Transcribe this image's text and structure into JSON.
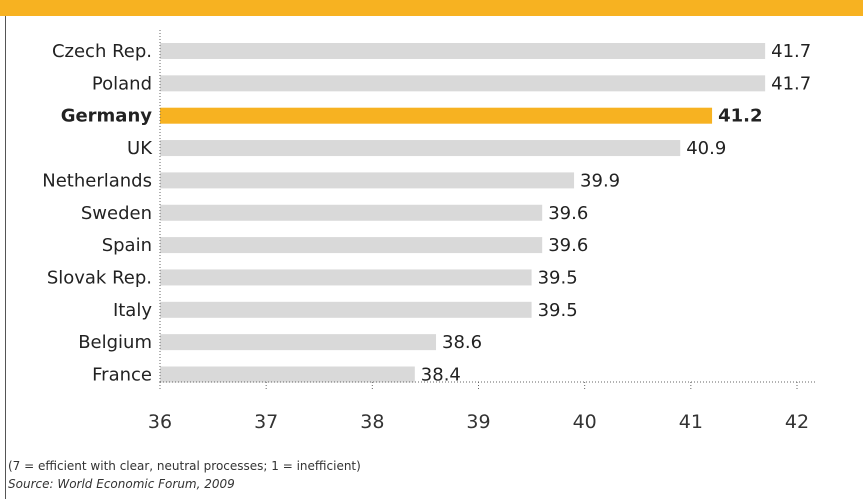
{
  "colors": {
    "bar": "#d9d9d9",
    "highlight": "#f7b221",
    "band": "#f7b221"
  },
  "chart_data": {
    "type": "bar",
    "orientation": "horizontal",
    "categories": [
      "Czech Rep.",
      "Poland",
      "Germany",
      "UK",
      "Netherlands",
      "Sweden",
      "Spain",
      "Slovak Rep.",
      "Italy",
      "Belgium",
      "France"
    ],
    "values": [
      41.7,
      41.7,
      41.2,
      40.9,
      39.9,
      39.6,
      39.6,
      39.5,
      39.5,
      38.6,
      38.4
    ],
    "value_labels": [
      "41.7",
      "41.7",
      "41.2",
      "40.9",
      "39.9",
      "39.6",
      "39.6",
      "39.5",
      "39.5",
      "38.6",
      "38.4"
    ],
    "highlight": "Germany",
    "xlim": [
      36,
      42
    ],
    "xticks": [
      "36",
      "37",
      "38",
      "39",
      "40",
      "41",
      "42"
    ],
    "grid": false
  },
  "footnotes": {
    "note": "(7 = efficient with clear, neutral processes; 1 = inefficient)",
    "source": "Source: World Economic Forum, 2009"
  }
}
